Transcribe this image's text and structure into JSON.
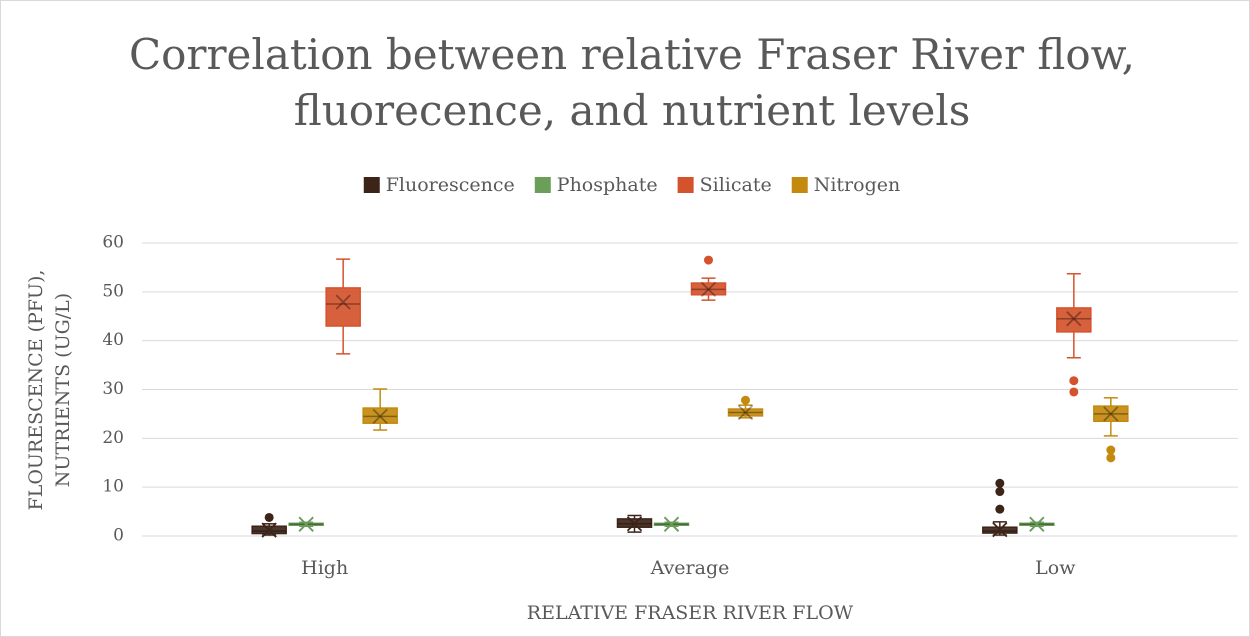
{
  "chart_data": {
    "type": "box",
    "title": [
      "Correlation between relative Fraser River flow,",
      "fluorecence, and nutrient levels"
    ],
    "xlabel": "RELATIVE FRASER RIVER FLOW",
    "ylabel": [
      "FLOURESCENCE (PFU),",
      "NUTRIENTS (UG/L)"
    ],
    "categories": [
      "High",
      "Average",
      "Low"
    ],
    "ylim": [
      0,
      60
    ],
    "yticks": [
      0,
      10,
      20,
      30,
      40,
      50,
      60
    ],
    "grid": true,
    "legend": "top",
    "series": [
      {
        "name": "Fluorescence",
        "color": "#3d2418",
        "boxes": [
          {
            "min": 0.2,
            "q1": 0.5,
            "median": 1,
            "q3": 2,
            "max": 2.5,
            "mean": 1.2,
            "outliers": [
              3.8
            ]
          },
          {
            "min": 0.8,
            "q1": 1.8,
            "median": 2.5,
            "q3": 3.5,
            "max": 4.2,
            "mean": 2.5,
            "outliers": []
          },
          {
            "min": 0.2,
            "q1": 0.6,
            "median": 1,
            "q3": 1.8,
            "max": 2.9,
            "mean": 1.3,
            "outliers": [
              10.8,
              9.1,
              5.5
            ]
          }
        ]
      },
      {
        "name": "Phosphate",
        "color": "#6b9e59",
        "boxes": [
          {
            "min": 2,
            "q1": 2.2,
            "median": 2.4,
            "q3": 2.6,
            "max": 2.8,
            "mean": 2.4,
            "outliers": []
          },
          {
            "min": 2,
            "q1": 2.2,
            "median": 2.4,
            "q3": 2.6,
            "max": 2.8,
            "mean": 2.4,
            "outliers": []
          },
          {
            "min": 2,
            "q1": 2.2,
            "median": 2.4,
            "q3": 2.6,
            "max": 2.8,
            "mean": 2.4,
            "outliers": []
          }
        ]
      },
      {
        "name": "Silicate",
        "color": "#d4532c",
        "boxes": [
          {
            "min": 37.3,
            "q1": 43,
            "median": 47.5,
            "q3": 50.8,
            "max": 56.7,
            "mean": 47.9,
            "outliers": []
          },
          {
            "min": 48.3,
            "q1": 49.4,
            "median": 50.5,
            "q3": 51.8,
            "max": 52.8,
            "mean": 50.5,
            "outliers": [
              56.5
            ]
          },
          {
            "min": 36.5,
            "q1": 41.8,
            "median": 44.5,
            "q3": 46.7,
            "max": 53.7,
            "mean": 44.5,
            "outliers": [
              31.8,
              29.5
            ]
          }
        ]
      },
      {
        "name": "Nitrogen",
        "color": "#c48a0e",
        "boxes": [
          {
            "min": 21.7,
            "q1": 23.1,
            "median": 24.5,
            "q3": 26.2,
            "max": 30.1,
            "mean": 24.5,
            "outliers": []
          },
          {
            "min": 24.2,
            "q1": 24.6,
            "median": 25.3,
            "q3": 26,
            "max": 26.8,
            "mean": 25.3,
            "outliers": [
              27.8
            ]
          },
          {
            "min": 20.5,
            "q1": 23.5,
            "median": 25,
            "q3": 26.6,
            "max": 28.3,
            "mean": 25,
            "outliers": [
              17.6,
              16
            ]
          }
        ]
      }
    ]
  }
}
